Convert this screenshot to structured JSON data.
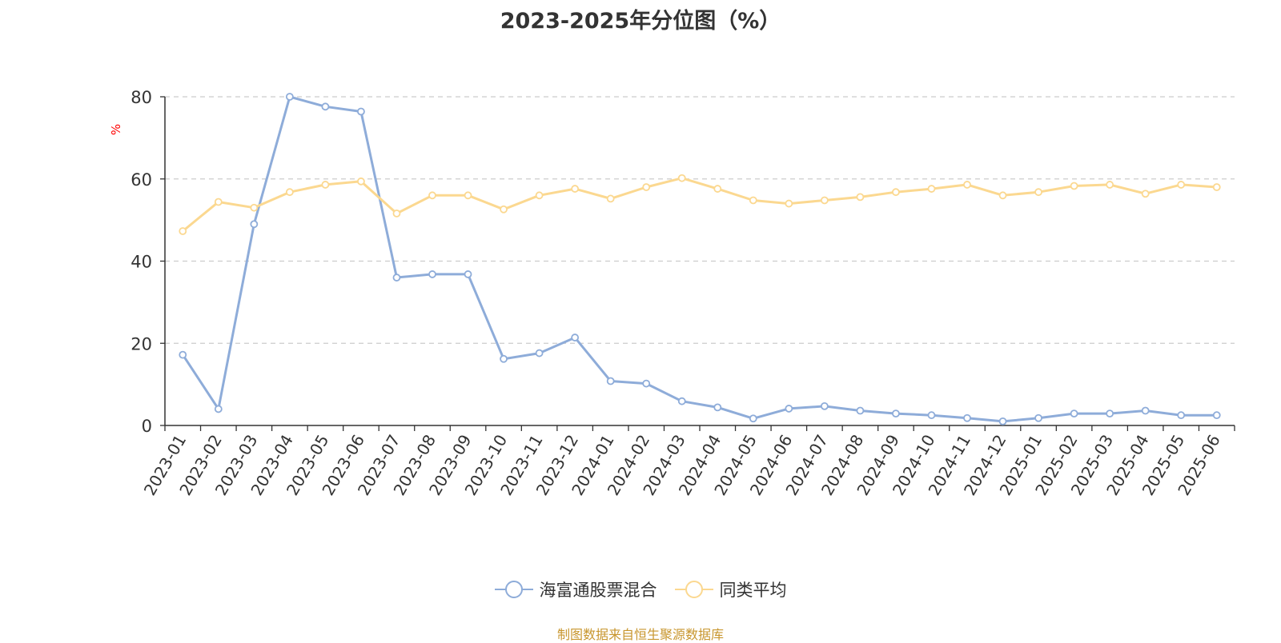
{
  "chart_data": {
    "type": "line",
    "title": "2023-2025年分位图（%）",
    "ylabel": "%",
    "ylim": [
      0,
      80
    ],
    "yticks": [
      0,
      20,
      40,
      60,
      80
    ],
    "grid": true,
    "legend_position": "bottom",
    "categories": [
      "2023-01",
      "2023-02",
      "2023-03",
      "2023-04",
      "2023-05",
      "2023-06",
      "2023-07",
      "2023-08",
      "2023-09",
      "2023-10",
      "2023-11",
      "2023-12",
      "2024-01",
      "2024-02",
      "2024-03",
      "2024-04",
      "2024-05",
      "2024-06",
      "2024-07",
      "2024-08",
      "2024-09",
      "2024-10",
      "2024-11",
      "2024-12",
      "2025-01",
      "2025-02",
      "2025-03",
      "2025-04",
      "2025-05",
      "2025-06"
    ],
    "series": [
      {
        "name": "海富通股票混合",
        "color": "#8eacd9",
        "values": [
          17.2,
          4.0,
          49.0,
          80.0,
          77.6,
          76.4,
          36.0,
          36.8,
          36.8,
          16.2,
          17.6,
          21.4,
          10.8,
          10.2,
          5.9,
          4.4,
          1.7,
          4.1,
          4.7,
          3.6,
          2.9,
          2.5,
          1.8,
          1.0,
          1.8,
          2.9,
          2.9,
          3.6,
          2.5,
          2.5
        ]
      },
      {
        "name": "同类平均",
        "color": "#fbd890",
        "values": [
          47.3,
          54.4,
          53.0,
          56.8,
          58.6,
          59.4,
          51.6,
          56.0,
          56.0,
          52.6,
          56.0,
          57.6,
          55.2,
          58.0,
          60.2,
          57.6,
          54.8,
          54.0,
          54.8,
          55.6,
          56.8,
          57.6,
          58.6,
          56.0,
          56.8,
          58.3,
          58.6,
          56.4,
          58.6,
          58.0
        ]
      }
    ]
  },
  "legend": {
    "items": [
      {
        "label": "海富通股票混合",
        "color": "#8eacd9"
      },
      {
        "label": "同类平均",
        "color": "#fbd890"
      }
    ]
  },
  "footer": {
    "source": "制图数据来自恒生聚源数据库"
  },
  "colors": {
    "axis": "#333333",
    "grid": "#cccccc",
    "ylabel": "#ff0000",
    "source": "#c8962e"
  }
}
